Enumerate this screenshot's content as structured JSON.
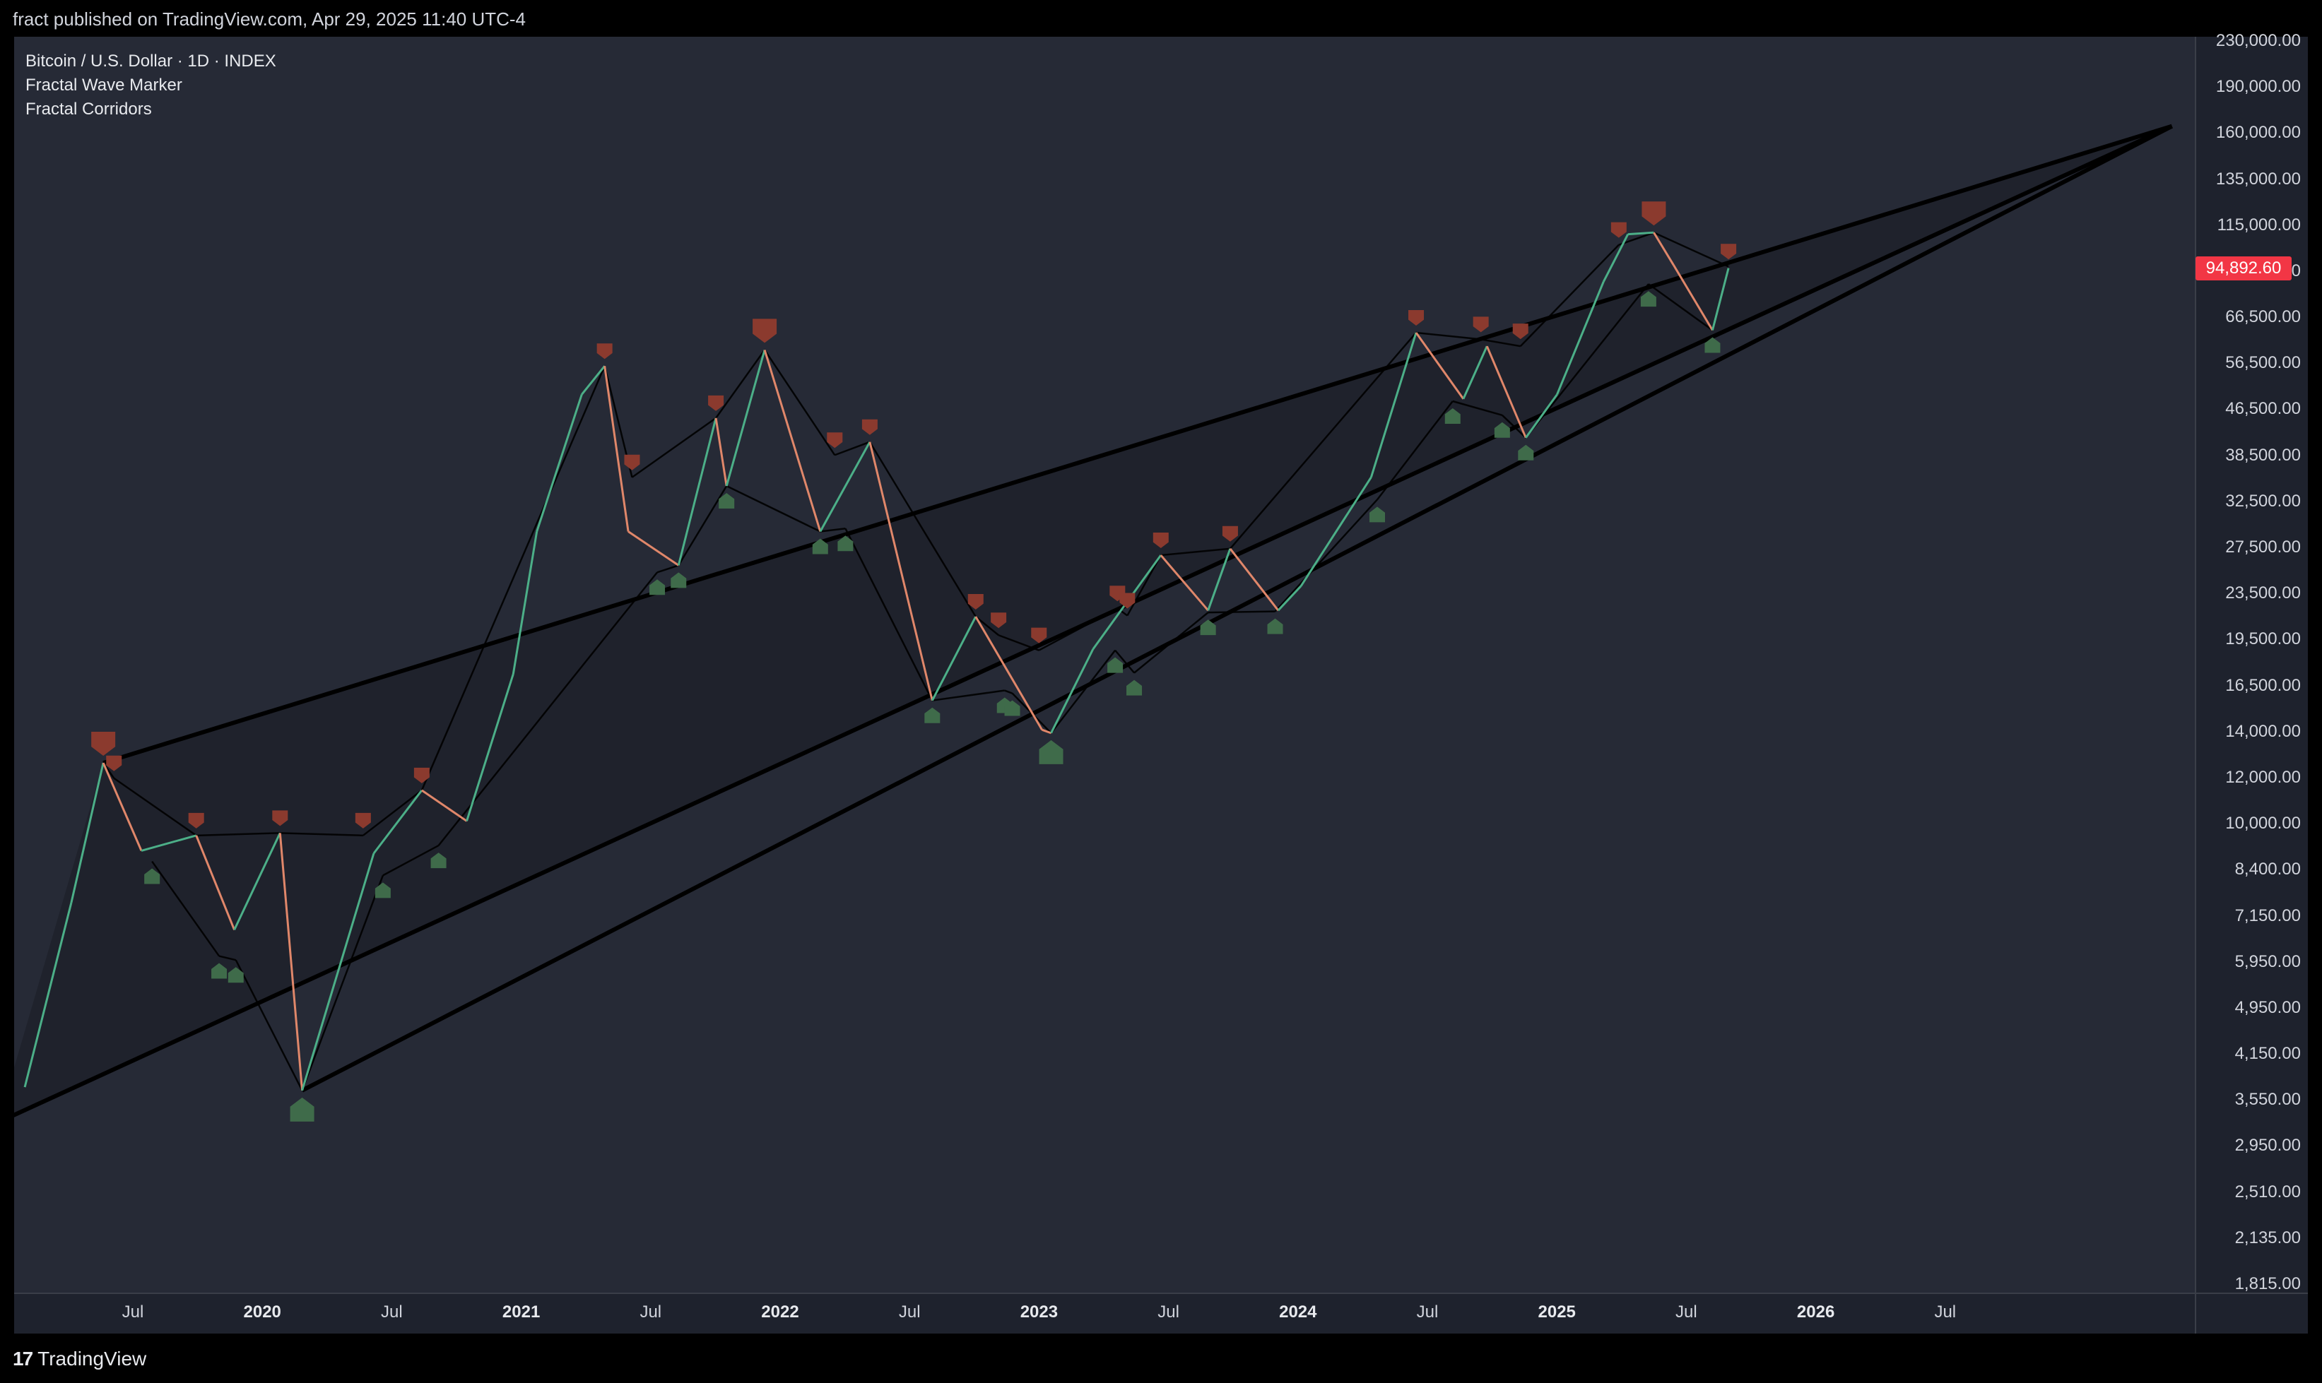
{
  "header": {
    "published": "fract published on TradingView.com, Apr 29, 2025 11:40 UTC-4"
  },
  "legend": {
    "symbol": "Bitcoin / U.S. Dollar · 1D · INDEX",
    "indicator1": "Fractal Wave Marker",
    "indicator2": "Fractal Corridors"
  },
  "price_axis": {
    "labels": [
      "230,000.00",
      "190,000.00",
      "160,000.00",
      "135,000.00",
      "115,000.00",
      "79,000.00",
      "66,500.00",
      "56,500.00",
      "46,500.00",
      "38,500.00",
      "32,500.00",
      "27,500.00",
      "23,500.00",
      "19,500.00",
      "16,500.00",
      "14,000.00",
      "12,000.00",
      "10,000.00",
      "8,400.00",
      "7,150.00",
      "5,950.00",
      "4,950.00",
      "4,150.00",
      "3,550.00",
      "2,950.00",
      "2,510.00",
      "2,135.00",
      "1,815.00"
    ],
    "current_price": "94,892.60"
  },
  "time_axis": {
    "labels": [
      {
        "text": "Jul",
        "year": false
      },
      {
        "text": "2020",
        "year": true
      },
      {
        "text": "Jul",
        "year": false
      },
      {
        "text": "2021",
        "year": true
      },
      {
        "text": "Jul",
        "year": false
      },
      {
        "text": "2022",
        "year": true
      },
      {
        "text": "Jul",
        "year": false
      },
      {
        "text": "2023",
        "year": true
      },
      {
        "text": "Jul",
        "year": false
      },
      {
        "text": "2024",
        "year": true
      },
      {
        "text": "Jul",
        "year": false
      },
      {
        "text": "2025",
        "year": true
      },
      {
        "text": "Jul",
        "year": false
      },
      {
        "text": "2026",
        "year": true
      },
      {
        "text": "Jul",
        "year": false
      }
    ]
  },
  "footer": {
    "brand": "TradingView",
    "brand_mark": "17"
  },
  "colors": {
    "background": "#262a36",
    "peak_marker": "#8b3a2e",
    "trough_marker": "#3f6b4a",
    "corridor_line": "#000000",
    "candle_up": "#4caf88",
    "candle_down": "#e0876a",
    "price_tag": "#f23645"
  },
  "chart_data": {
    "type": "line",
    "title": "Bitcoin / U.S. Dollar · 1D · INDEX",
    "scale": "log",
    "ylim": [
      1815,
      230000
    ],
    "x_range": [
      "2019-03",
      "2026-12"
    ],
    "series": [
      {
        "name": "Bitcoin / U.S. Dollar",
        "x": [
          "2019-03",
          "2019-05",
          "2019-06-26",
          "2019-08",
          "2019-10-26",
          "2019-12",
          "2020-02-13",
          "2020-03-13",
          "2020-06",
          "2020-08-17",
          "2020-10",
          "2020-12",
          "2021-01",
          "2021-03",
          "2021-04-14",
          "2021-05",
          "2021-07-20",
          "2021-09-07",
          "2021-09-21",
          "2021-11-10",
          "2022-01-22",
          "2022-03-28",
          "2022-06-18",
          "2022-08-14",
          "2022-11-09",
          "2022-11-21",
          "2023-01",
          "2023-04-14",
          "2023-06",
          "2023-07-14",
          "2023-09",
          "2023-10",
          "2024-01",
          "2024-03-14",
          "2024-05",
          "2024-06",
          "2024-08-05",
          "2024-09",
          "2024-11",
          "2024-12-17",
          "2025-01-20",
          "2025-02",
          "2025-04-07",
          "2025-04-28"
        ],
        "values": [
          3900,
          8000,
          13800,
          9800,
          10400,
          7200,
          10500,
          3850,
          9700,
          12400,
          11000,
          19500,
          34000,
          58000,
          64800,
          34000,
          29800,
          52900,
          40600,
          69000,
          34000,
          48200,
          17600,
          24400,
          15700,
          15500,
          21500,
          31000,
          25000,
          31800,
          25000,
          27500,
          42000,
          73800,
          57000,
          70000,
          49000,
          58000,
          90000,
          108300,
          109000,
          96000,
          74500,
          94892.6
        ]
      }
    ],
    "fractal_peaks": [
      {
        "date": "2019-06-26",
        "price": 13800,
        "size": "large"
      },
      {
        "date": "2019-07-10",
        "price": 13000,
        "size": "small"
      },
      {
        "date": "2019-10-26",
        "price": 10400,
        "size": "small"
      },
      {
        "date": "2020-02-13",
        "price": 10500,
        "size": "small"
      },
      {
        "date": "2020-06-01",
        "price": 10400,
        "size": "small"
      },
      {
        "date": "2020-08-17",
        "price": 12400,
        "size": "small"
      },
      {
        "date": "2021-04-14",
        "price": 64800,
        "size": "small"
      },
      {
        "date": "2021-05-20",
        "price": 42000,
        "size": "small"
      },
      {
        "date": "2021-09-07",
        "price": 52900,
        "size": "small"
      },
      {
        "date": "2021-11-10",
        "price": 69000,
        "size": "large"
      },
      {
        "date": "2022-02-10",
        "price": 45800,
        "size": "small"
      },
      {
        "date": "2022-03-28",
        "price": 48200,
        "size": "small"
      },
      {
        "date": "2022-08-14",
        "price": 24400,
        "size": "small"
      },
      {
        "date": "2022-09-13",
        "price": 22700,
        "size": "small"
      },
      {
        "date": "2022-11-05",
        "price": 21400,
        "size": "small"
      },
      {
        "date": "2023-02-16",
        "price": 25200,
        "size": "small"
      },
      {
        "date": "2023-03-01",
        "price": 24500,
        "size": "small"
      },
      {
        "date": "2023-04-14",
        "price": 31000,
        "size": "small"
      },
      {
        "date": "2023-07-14",
        "price": 31800,
        "size": "small"
      },
      {
        "date": "2024-03-14",
        "price": 73800,
        "size": "small"
      },
      {
        "date": "2024-06-07",
        "price": 71900,
        "size": "small"
      },
      {
        "date": "2024-07-29",
        "price": 70000,
        "size": "small"
      },
      {
        "date": "2024-12-05",
        "price": 103900,
        "size": "small"
      },
      {
        "date": "2025-01-20",
        "price": 109000,
        "size": "large"
      },
      {
        "date": "2025-04-28",
        "price": 95500,
        "size": "small"
      }
    ],
    "fractal_troughs": [
      {
        "date": "2019-08-29",
        "price": 9400,
        "size": "small"
      },
      {
        "date": "2019-11-25",
        "price": 6500,
        "size": "small"
      },
      {
        "date": "2019-12-17",
        "price": 6400,
        "size": "small"
      },
      {
        "date": "2020-03-13",
        "price": 3850,
        "size": "large"
      },
      {
        "date": "2020-06-27",
        "price": 8900,
        "size": "small"
      },
      {
        "date": "2020-09-08",
        "price": 10000,
        "size": "small"
      },
      {
        "date": "2021-06-22",
        "price": 29000,
        "size": "small"
      },
      {
        "date": "2021-07-20",
        "price": 29800,
        "size": "small"
      },
      {
        "date": "2021-09-21",
        "price": 40600,
        "size": "small"
      },
      {
        "date": "2022-01-22",
        "price": 34000,
        "size": "small"
      },
      {
        "date": "2022-02-24",
        "price": 34400,
        "size": "small"
      },
      {
        "date": "2022-06-18",
        "price": 17600,
        "size": "small"
      },
      {
        "date": "2022-09-21",
        "price": 18300,
        "size": "small"
      },
      {
        "date": "2022-10-01",
        "price": 18100,
        "size": "small"
      },
      {
        "date": "2022-11-21",
        "price": 15500,
        "size": "large"
      },
      {
        "date": "2023-02-13",
        "price": 21400,
        "size": "small"
      },
      {
        "date": "2023-03-10",
        "price": 19600,
        "size": "small"
      },
      {
        "date": "2023-06-15",
        "price": 24800,
        "size": "small"
      },
      {
        "date": "2023-09-11",
        "price": 24900,
        "size": "small"
      },
      {
        "date": "2024-01-23",
        "price": 38500,
        "size": "small"
      },
      {
        "date": "2024-05-01",
        "price": 56500,
        "size": "small"
      },
      {
        "date": "2024-07-05",
        "price": 53500,
        "size": "small"
      },
      {
        "date": "2024-08-05",
        "price": 49000,
        "size": "small"
      },
      {
        "date": "2025-01-13",
        "price": 89200,
        "size": "small"
      },
      {
        "date": "2025-04-07",
        "price": 74500,
        "size": "small"
      }
    ],
    "corridors": [
      {
        "from": {
          "date": "2019-02-08",
          "price": 3400
        },
        "to": {
          "date": "2026-12-01",
          "price": 165000
        },
        "weight": "bold"
      },
      {
        "from": {
          "date": "2019-06-26",
          "price": 13800
        },
        "to": {
          "date": "2026-12-01",
          "price": 165000
        },
        "weight": "bold"
      },
      {
        "from": {
          "date": "2020-03-13",
          "price": 3850
        },
        "to": {
          "date": "2026-12-01",
          "price": 165000
        },
        "weight": "bold"
      }
    ]
  }
}
